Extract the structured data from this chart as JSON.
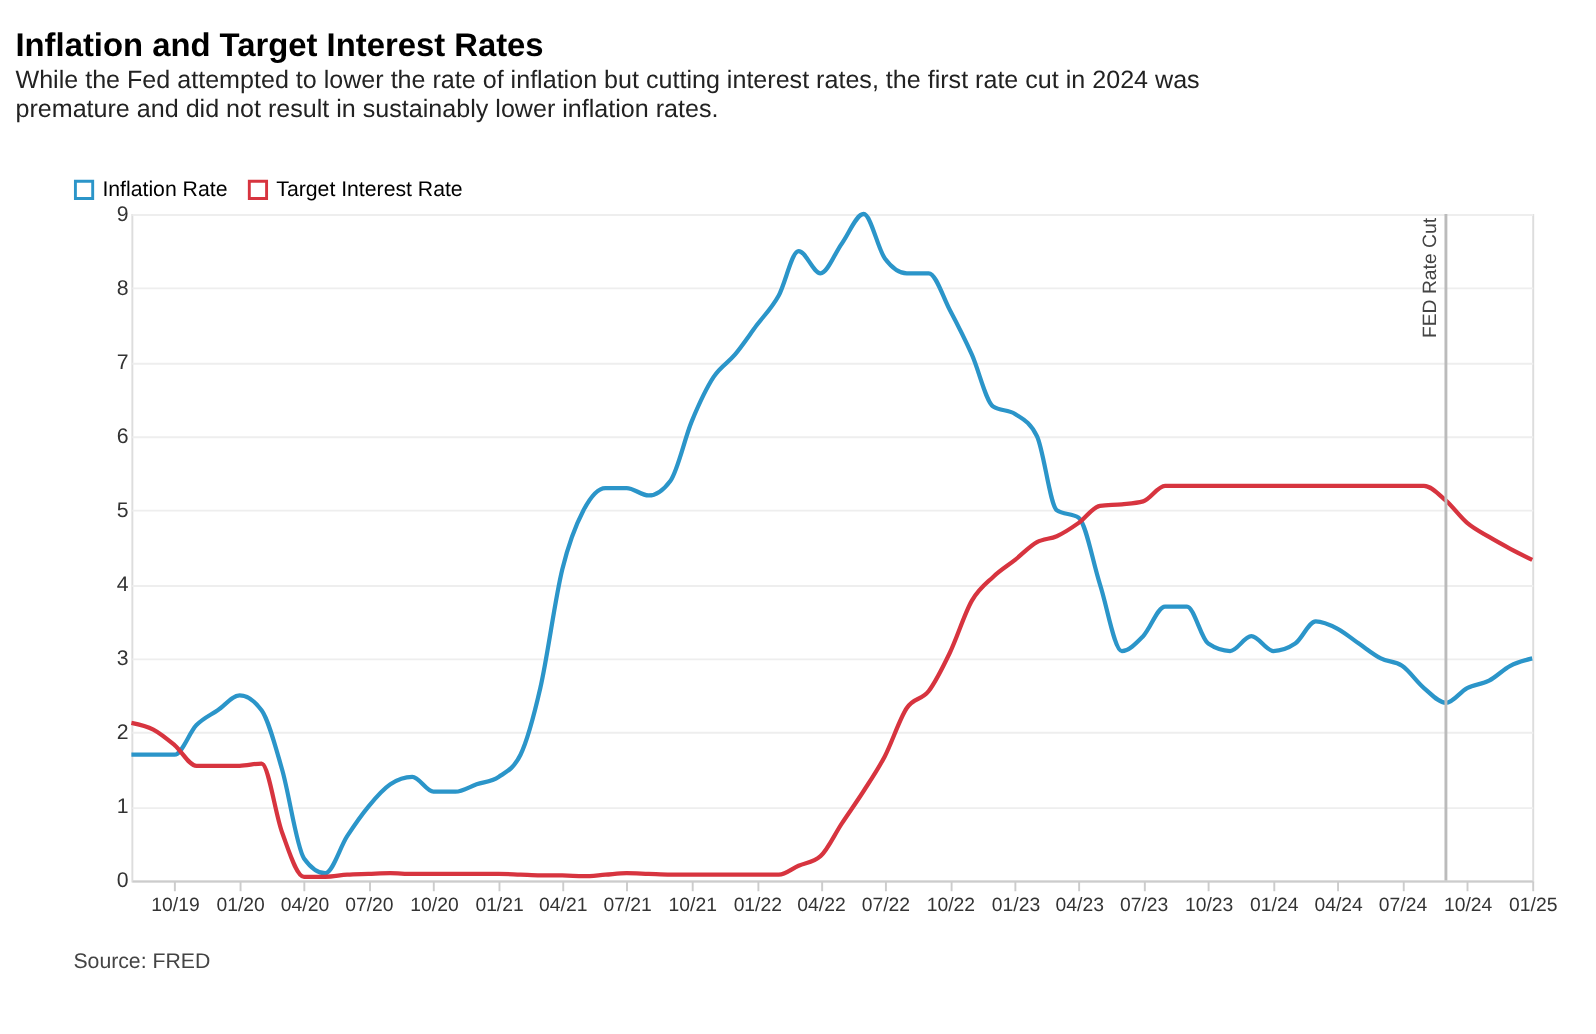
{
  "chart_data": {
    "type": "line",
    "title": "Inflation and Target Interest Rates",
    "subtitle": "While the Fed attempted to lower the rate of inflation but cutting interest rates, the first rate cut in 2024 was premature and did not result in sustainably lower inflation rates.",
    "x": [
      "2019-08",
      "2019-09",
      "2019-10",
      "2019-11",
      "2019-12",
      "2020-01",
      "2020-02",
      "2020-03",
      "2020-04",
      "2020-05",
      "2020-06",
      "2020-07",
      "2020-08",
      "2020-09",
      "2020-10",
      "2020-11",
      "2020-12",
      "2021-01",
      "2021-02",
      "2021-03",
      "2021-04",
      "2021-05",
      "2021-06",
      "2021-07",
      "2021-08",
      "2021-09",
      "2021-10",
      "2021-11",
      "2021-12",
      "2022-01",
      "2022-02",
      "2022-03",
      "2022-04",
      "2022-05",
      "2022-06",
      "2022-07",
      "2022-08",
      "2022-09",
      "2022-10",
      "2022-11",
      "2022-12",
      "2023-01",
      "2023-02",
      "2023-03",
      "2023-04",
      "2023-05",
      "2023-06",
      "2023-07",
      "2023-08",
      "2023-09",
      "2023-10",
      "2023-11",
      "2023-12",
      "2024-01",
      "2024-02",
      "2024-03",
      "2024-04",
      "2024-05",
      "2024-06",
      "2024-07",
      "2024-08",
      "2024-09",
      "2024-10",
      "2024-11",
      "2024-12",
      "2025-01"
    ],
    "series": [
      {
        "name": "Inflation Rate",
        "color": "#2b95c9",
        "values": [
          1.7,
          1.7,
          1.7,
          2.1,
          2.3,
          2.5,
          2.3,
          1.5,
          0.3,
          0.1,
          0.6,
          1.0,
          1.3,
          1.4,
          1.2,
          1.2,
          1.3,
          1.4,
          1.7,
          2.6,
          4.2,
          5.0,
          5.3,
          5.3,
          5.2,
          5.4,
          6.2,
          6.8,
          7.1,
          7.5,
          7.9,
          8.5,
          8.2,
          8.6,
          9.0,
          8.4,
          8.2,
          8.2,
          7.7,
          7.1,
          6.4,
          6.3,
          6.0,
          5.0,
          4.9,
          4.0,
          3.1,
          3.3,
          3.7,
          3.7,
          3.2,
          3.1,
          3.3,
          3.1,
          3.2,
          3.5,
          3.4,
          3.2,
          3.0,
          2.9,
          2.6,
          2.4,
          2.6,
          2.7,
          2.9,
          3.0
        ]
      },
      {
        "name": "Target Interest Rate",
        "color": "#d7343f",
        "values": [
          2.13,
          2.04,
          1.83,
          1.55,
          1.55,
          1.55,
          1.58,
          0.65,
          0.05,
          0.05,
          0.08,
          0.09,
          0.1,
          0.09,
          0.09,
          0.09,
          0.09,
          0.09,
          0.08,
          0.07,
          0.07,
          0.06,
          0.08,
          0.1,
          0.09,
          0.08,
          0.08,
          0.08,
          0.08,
          0.08,
          0.08,
          0.2,
          0.33,
          0.77,
          1.21,
          1.68,
          2.33,
          2.56,
          3.08,
          3.78,
          4.1,
          4.33,
          4.57,
          4.65,
          4.83,
          5.06,
          5.08,
          5.12,
          5.33,
          5.33,
          5.33,
          5.33,
          5.33,
          5.33,
          5.33,
          5.33,
          5.33,
          5.33,
          5.33,
          5.33,
          5.33,
          5.13,
          4.83,
          4.64,
          4.48,
          4.33
        ]
      }
    ],
    "xlim": [
      "2019-08",
      "2025-01"
    ],
    "xticks": [
      {
        "value": "2019-10",
        "label": "10/19"
      },
      {
        "value": "2020-01",
        "label": "01/20"
      },
      {
        "value": "2020-04",
        "label": "04/20"
      },
      {
        "value": "2020-07",
        "label": "07/20"
      },
      {
        "value": "2020-10",
        "label": "10/20"
      },
      {
        "value": "2021-01",
        "label": "01/21"
      },
      {
        "value": "2021-04",
        "label": "04/21"
      },
      {
        "value": "2021-07",
        "label": "07/21"
      },
      {
        "value": "2021-10",
        "label": "10/21"
      },
      {
        "value": "2022-01",
        "label": "01/22"
      },
      {
        "value": "2022-04",
        "label": "04/22"
      },
      {
        "value": "2022-07",
        "label": "07/22"
      },
      {
        "value": "2022-10",
        "label": "10/22"
      },
      {
        "value": "2023-01",
        "label": "01/23"
      },
      {
        "value": "2023-04",
        "label": "04/23"
      },
      {
        "value": "2023-07",
        "label": "07/23"
      },
      {
        "value": "2023-10",
        "label": "10/23"
      },
      {
        "value": "2024-01",
        "label": "01/24"
      },
      {
        "value": "2024-04",
        "label": "04/24"
      },
      {
        "value": "2024-07",
        "label": "07/24"
      },
      {
        "value": "2024-10",
        "label": "10/24"
      },
      {
        "value": "2025-01",
        "label": "01/25"
      }
    ],
    "ylim": [
      0,
      9
    ],
    "yticks": [
      0,
      1,
      2,
      3,
      4,
      5,
      6,
      7,
      8,
      9
    ],
    "grid": "y",
    "legend": "top left",
    "marker": "none",
    "line_style": "solid",
    "ref_lines": [
      {
        "axis": "x",
        "value": "2024-09",
        "label": "FED Rate Cut",
        "color": "#bbbbbb"
      }
    ],
    "annotations": [
      "Source: FRED"
    ]
  }
}
